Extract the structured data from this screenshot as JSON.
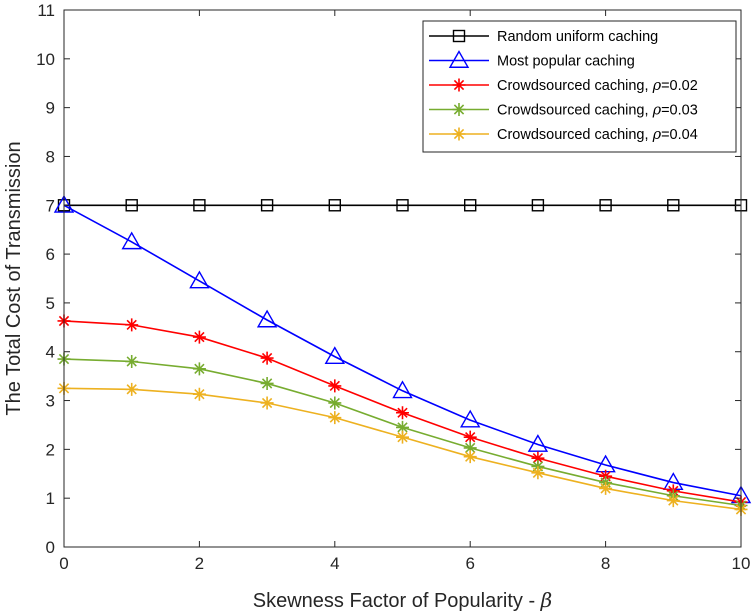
{
  "chart_data": {
    "type": "line",
    "title": "",
    "xlabel": "Skewness Factor of Popularity - ",
    "xlabel_symbol": "β",
    "ylabel": "The Total Cost of Transmission",
    "xlim": [
      0,
      10
    ],
    "ylim": [
      0,
      11
    ],
    "xticks": [
      0,
      2,
      4,
      6,
      8,
      10
    ],
    "yticks": [
      0,
      1,
      2,
      3,
      4,
      5,
      6,
      7,
      8,
      9,
      10,
      11
    ],
    "grid": false,
    "legend_position": "top-right",
    "x": [
      0,
      1,
      2,
      3,
      4,
      5,
      6,
      7,
      8,
      9,
      10
    ],
    "series": [
      {
        "name": "Random uniform caching",
        "label_text": "Random uniform caching",
        "label_symbol": "",
        "label_suffix": "",
        "color": "#000000",
        "marker": "square",
        "values": [
          7,
          7,
          7,
          7,
          7,
          7,
          7,
          7,
          7,
          7,
          7
        ]
      },
      {
        "name": "Most popular caching",
        "label_text": "Most popular caching",
        "label_symbol": "",
        "label_suffix": "",
        "color": "#0000ff",
        "marker": "triangle",
        "values": [
          7.0,
          6.25,
          5.45,
          4.65,
          3.9,
          3.2,
          2.6,
          2.1,
          1.68,
          1.32,
          1.05
        ]
      },
      {
        "name": "Crowdsourced caching, ρ=0.02",
        "label_text": "Crowdsourced caching, ",
        "label_symbol": "ρ",
        "label_suffix": "=0.02",
        "color": "#ff0000",
        "marker": "asterisk",
        "values": [
          4.63,
          4.55,
          4.3,
          3.87,
          3.3,
          2.75,
          2.25,
          1.82,
          1.45,
          1.15,
          0.92
        ]
      },
      {
        "name": "Crowdsourced caching, ρ=0.03",
        "label_text": "Crowdsourced caching, ",
        "label_symbol": "ρ",
        "label_suffix": "=0.03",
        "color": "#77ac30",
        "marker": "asterisk",
        "values": [
          3.85,
          3.8,
          3.65,
          3.35,
          2.95,
          2.45,
          2.03,
          1.65,
          1.32,
          1.05,
          0.85
        ]
      },
      {
        "name": "Crowdsourced caching, ρ=0.04",
        "label_text": "Crowdsourced caching, ",
        "label_symbol": "ρ",
        "label_suffix": "=0.04",
        "color": "#edb120",
        "marker": "asterisk",
        "values": [
          3.25,
          3.23,
          3.13,
          2.95,
          2.65,
          2.25,
          1.85,
          1.52,
          1.2,
          0.95,
          0.77
        ]
      }
    ]
  }
}
